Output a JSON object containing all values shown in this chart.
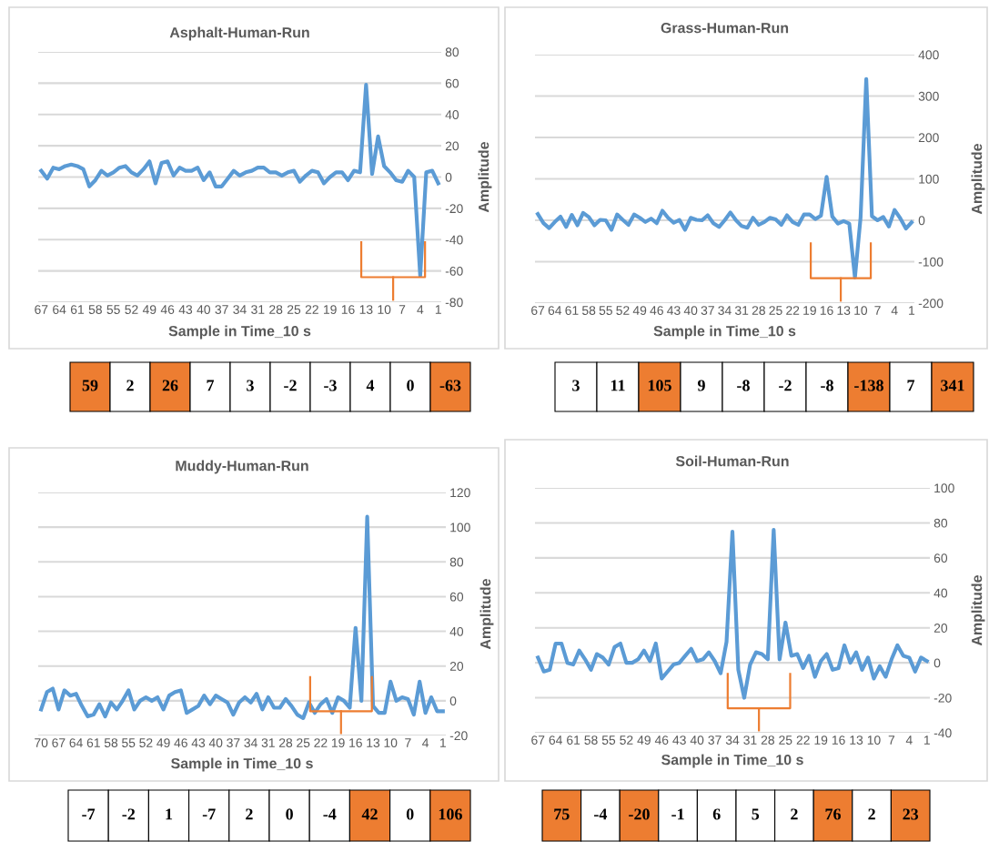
{
  "chart_data": [
    {
      "type": "line",
      "title": "Asphalt-Human-Run",
      "xlabel": "Sample in Time_10 s",
      "ylabel": "Amplitude",
      "categories": [
        "67",
        null,
        null,
        "64",
        null,
        null,
        "61",
        null,
        null,
        "58",
        null,
        null,
        "55",
        null,
        null,
        "52",
        null,
        null,
        "49",
        null,
        null,
        "46",
        null,
        null,
        "43",
        null,
        null,
        "40",
        null,
        null,
        "37",
        null,
        null,
        "34",
        null,
        null,
        "31",
        null,
        null,
        "28",
        null,
        null,
        "25",
        null,
        null,
        "22",
        null,
        null,
        "19",
        null,
        null,
        "16",
        null,
        null,
        "13",
        null,
        null,
        "10",
        null,
        null,
        "7",
        null,
        null,
        "4",
        null,
        null,
        "1"
      ],
      "series": [
        {
          "color": "#5b9bd5",
          "values": [
            4,
            -1,
            6,
            5,
            7,
            8,
            7,
            5,
            -6,
            -2,
            4,
            1,
            3,
            6,
            7,
            3,
            1,
            5,
            10,
            -4,
            9,
            10,
            1,
            6,
            4,
            4,
            6,
            -2,
            3,
            -6,
            -6,
            -1,
            4,
            1,
            3,
            4,
            6,
            6,
            3,
            3,
            1,
            3,
            4,
            -3,
            1,
            4,
            3,
            -4,
            0,
            3,
            3,
            -2,
            4,
            3,
            59,
            2,
            26,
            7,
            3,
            -2,
            -3,
            4,
            0,
            -63,
            3,
            4,
            -4
          ]
        }
      ],
      "ylim": [
        -80,
        80
      ],
      "yticks": [
        -80,
        -60,
        -40,
        -20,
        0,
        20,
        40,
        60,
        80
      ],
      "grid": "y",
      "legend": false,
      "annotations": [
        "59",
        "2",
        "26",
        "7",
        "3",
        "-2",
        "-3",
        "4",
        "0",
        "-63"
      ]
    },
    {
      "type": "line",
      "title": "Grass-Human-Run",
      "xlabel": "Sample in Time_10 s",
      "ylabel": "Amplitude",
      "categories": [
        "67",
        null,
        null,
        "64",
        null,
        null,
        "61",
        null,
        null,
        "58",
        null,
        null,
        "55",
        null,
        null,
        "52",
        null,
        null,
        "49",
        null,
        null,
        "46",
        null,
        null,
        "43",
        null,
        null,
        "40",
        null,
        null,
        "37",
        null,
        null,
        "34",
        null,
        null,
        "31",
        null,
        null,
        "28",
        null,
        null,
        "25",
        null,
        null,
        "22",
        null,
        null,
        "19",
        null,
        null,
        "16",
        null,
        null,
        "13",
        null,
        null,
        "10",
        null,
        null,
        "7",
        null,
        null,
        "4",
        null,
        null,
        "1"
      ],
      "series": [
        {
          "color": "#5b9bd5",
          "values": [
            15,
            -7,
            -19,
            -4,
            9,
            -16,
            13,
            -12,
            18,
            8,
            -12,
            1,
            0,
            -23,
            14,
            1,
            -11,
            14,
            6,
            -4,
            4,
            -7,
            23,
            6,
            -6,
            1,
            -23,
            6,
            1,
            0,
            12,
            -7,
            -16,
            0,
            19,
            0,
            -14,
            -18,
            6,
            -11,
            -4,
            6,
            2,
            -11,
            12,
            -4,
            -11,
            14,
            14,
            3,
            11,
            105,
            9,
            -8,
            -2,
            -8,
            -138,
            7,
            341,
            10,
            0,
            8,
            -15,
            25,
            5,
            -20,
            -5
          ]
        }
      ],
      "ylim": [
        -200,
        400
      ],
      "yticks": [
        -200,
        -100,
        0,
        100,
        200,
        300,
        400
      ],
      "grid": "y",
      "legend": false,
      "annotations": [
        "3",
        "11",
        "105",
        "9",
        "-8",
        "-2",
        "-8",
        "-138",
        "7",
        "341"
      ]
    },
    {
      "type": "line",
      "title": "Muddy-Human-Run",
      "xlabel": "Sample in Time_10 s",
      "ylabel": "Amplitude",
      "categories": [
        "70",
        null,
        null,
        "67",
        null,
        null,
        "64",
        null,
        null,
        "61",
        null,
        null,
        "58",
        null,
        null,
        "55",
        null,
        null,
        "52",
        null,
        null,
        "49",
        null,
        null,
        "46",
        null,
        null,
        "43",
        null,
        null,
        "40",
        null,
        null,
        "37",
        null,
        null,
        "34",
        null,
        null,
        "31",
        null,
        null,
        "28",
        null,
        null,
        "25",
        null,
        null,
        "22",
        null,
        null,
        "19",
        null,
        null,
        "16",
        null,
        null,
        "13",
        null,
        null,
        "10",
        null,
        null,
        "7",
        null,
        null,
        "4",
        null,
        null,
        "1"
      ],
      "series": [
        {
          "color": "#5b9bd5",
          "values": [
            -5,
            5,
            7,
            -5,
            6,
            3,
            4,
            -3,
            -9,
            -8,
            -2,
            -9,
            -1,
            -5,
            0,
            6,
            -5,
            0,
            2,
            0,
            2,
            -5,
            3,
            5,
            6,
            -7,
            -5,
            -3,
            3,
            -2,
            3,
            1,
            -1,
            -8,
            -1,
            2,
            -1,
            4,
            -5,
            2,
            -4,
            -4,
            1,
            -3,
            -8,
            -10,
            -1,
            -7,
            -2,
            1,
            -7,
            2,
            0,
            -4,
            42,
            0,
            106,
            -3,
            -7,
            -7,
            11,
            0,
            2,
            1,
            -8,
            11,
            -7,
            2,
            -6,
            -6
          ]
        }
      ],
      "ylim": [
        -20,
        120
      ],
      "yticks": [
        -20,
        0,
        20,
        40,
        60,
        80,
        100,
        120
      ],
      "grid": "y",
      "legend": false,
      "annotations": [
        "-7",
        "-2",
        "1",
        "-7",
        "2",
        "0",
        "-4",
        "42",
        "0",
        "106"
      ]
    },
    {
      "type": "line",
      "title": "Soil-Human-Run",
      "xlabel": "Sample in Time_10 s",
      "ylabel": "Amplitude",
      "categories": [
        "67",
        null,
        null,
        "64",
        null,
        null,
        "61",
        null,
        null,
        "58",
        null,
        null,
        "55",
        null,
        null,
        "52",
        null,
        null,
        "49",
        null,
        null,
        "46",
        null,
        null,
        "43",
        null,
        null,
        "40",
        null,
        null,
        "37",
        null,
        null,
        "34",
        null,
        null,
        "31",
        null,
        null,
        "28",
        null,
        null,
        "25",
        null,
        null,
        "22",
        null,
        null,
        "19",
        null,
        null,
        "16",
        null,
        null,
        "13",
        null,
        null,
        "10",
        null,
        null,
        "7",
        null,
        null,
        "4",
        null,
        null,
        "1"
      ],
      "series": [
        {
          "color": "#5b9bd5",
          "values": [
            3,
            -5,
            -4,
            11,
            11,
            0,
            -1,
            7,
            2,
            -4,
            5,
            3,
            -1,
            9,
            11,
            0,
            0,
            2,
            7,
            1,
            11,
            -9,
            -5,
            -1,
            0,
            4,
            8,
            1,
            2,
            6,
            1,
            -6,
            12,
            75,
            -4,
            -20,
            -1,
            6,
            5,
            2,
            76,
            2,
            23,
            4,
            5,
            -3,
            4,
            -8,
            1,
            5,
            -4,
            -3,
            10,
            0,
            6,
            -4,
            3,
            -9,
            -2,
            -8,
            2,
            10,
            4,
            3,
            -5,
            3,
            1
          ]
        }
      ],
      "ylim": [
        -40,
        100
      ],
      "yticks": [
        -40,
        -20,
        0,
        20,
        40,
        60,
        80,
        100
      ],
      "grid": "y",
      "legend": false,
      "annotations": [
        "75",
        "-4",
        "-20",
        "-1",
        "6",
        "5",
        "2",
        "76",
        "2",
        "23"
      ]
    }
  ]
}
